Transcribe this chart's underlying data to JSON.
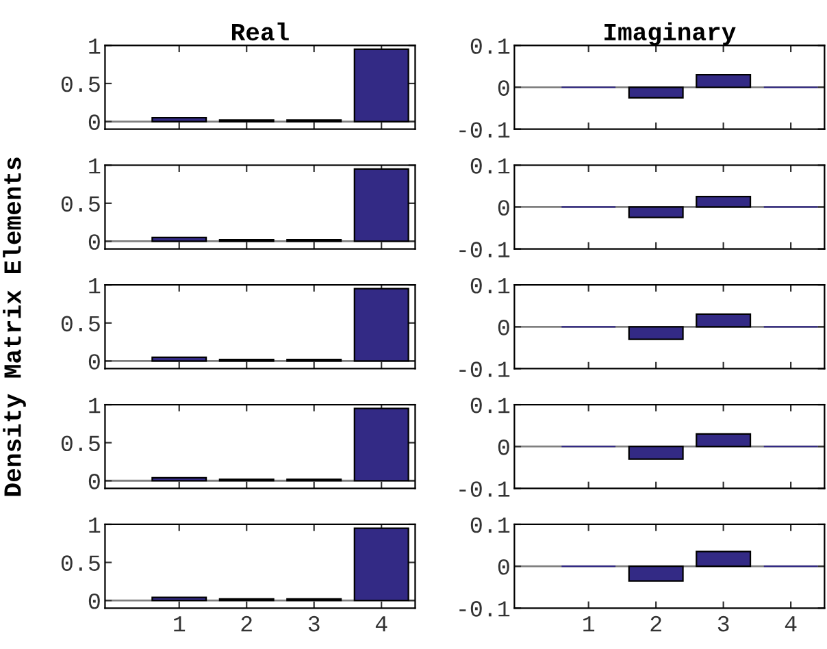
{
  "chart_data": [
    {
      "type": "bar",
      "title": "Real",
      "x": [
        1,
        2,
        3,
        4
      ],
      "values": [
        0.05,
        0.02,
        0.02,
        0.95
      ],
      "color": "#332a85",
      "xlim": [
        -0.1,
        4.5
      ],
      "xticks": [
        1,
        2,
        3,
        4
      ],
      "ylim": [
        -0.1,
        1
      ],
      "yticks": [
        0,
        0.5,
        1
      ],
      "tick_labels": "y",
      "ref_lines": [
        {
          "axis": "y",
          "value": 0,
          "color": "#808080"
        }
      ]
    },
    {
      "type": "bar",
      "title": "Imaginary",
      "x": [
        1,
        2,
        3,
        4
      ],
      "values": [
        0,
        -0.025,
        0.03,
        0
      ],
      "color": "#332a85",
      "xlim": [
        -0.1,
        4.5
      ],
      "xticks": [
        1,
        2,
        3,
        4
      ],
      "ylim": [
        -0.1,
        0.1
      ],
      "yticks": [
        -0.1,
        0,
        0.1
      ],
      "tick_labels": "y",
      "ref_lines": [
        {
          "axis": "y",
          "value": 0,
          "color": "#808080"
        }
      ]
    },
    {
      "type": "bar",
      "x": [
        1,
        2,
        3,
        4
      ],
      "values": [
        0.05,
        0.02,
        0.02,
        0.95
      ],
      "color": "#332a85",
      "xlim": [
        -0.1,
        4.5
      ],
      "xticks": [
        1,
        2,
        3,
        4
      ],
      "ylim": [
        -0.1,
        1
      ],
      "yticks": [
        0,
        0.5,
        1
      ],
      "tick_labels": "y",
      "ref_lines": [
        {
          "axis": "y",
          "value": 0,
          "color": "#808080"
        }
      ]
    },
    {
      "type": "bar",
      "x": [
        1,
        2,
        3,
        4
      ],
      "values": [
        0,
        -0.025,
        0.025,
        0
      ],
      "color": "#332a85",
      "xlim": [
        -0.1,
        4.5
      ],
      "xticks": [
        1,
        2,
        3,
        4
      ],
      "ylim": [
        -0.1,
        0.1
      ],
      "yticks": [
        -0.1,
        0,
        0.1
      ],
      "tick_labels": "y",
      "ref_lines": [
        {
          "axis": "y",
          "value": 0,
          "color": "#808080"
        }
      ]
    },
    {
      "type": "bar",
      "ylabel": "Density Matrix Elements",
      "x": [
        1,
        2,
        3,
        4
      ],
      "values": [
        0.05,
        0.02,
        0.02,
        0.95
      ],
      "color": "#332a85",
      "xlim": [
        -0.1,
        4.5
      ],
      "xticks": [
        1,
        2,
        3,
        4
      ],
      "ylim": [
        -0.1,
        1
      ],
      "yticks": [
        0,
        0.5,
        1
      ],
      "tick_labels": "y",
      "ref_lines": [
        {
          "axis": "y",
          "value": 0,
          "color": "#808080"
        }
      ]
    },
    {
      "type": "bar",
      "x": [
        1,
        2,
        3,
        4
      ],
      "values": [
        0,
        -0.03,
        0.03,
        0
      ],
      "color": "#332a85",
      "xlim": [
        -0.1,
        4.5
      ],
      "xticks": [
        1,
        2,
        3,
        4
      ],
      "ylim": [
        -0.1,
        0.1
      ],
      "yticks": [
        -0.1,
        0,
        0.1
      ],
      "tick_labels": "y",
      "ref_lines": [
        {
          "axis": "y",
          "value": 0,
          "color": "#808080"
        }
      ]
    },
    {
      "type": "bar",
      "x": [
        1,
        2,
        3,
        4
      ],
      "values": [
        0.04,
        0.02,
        0.02,
        0.95
      ],
      "color": "#332a85",
      "xlim": [
        -0.1,
        4.5
      ],
      "xticks": [
        1,
        2,
        3,
        4
      ],
      "ylim": [
        -0.1,
        1
      ],
      "yticks": [
        0,
        0.5,
        1
      ],
      "tick_labels": "y",
      "ref_lines": [
        {
          "axis": "y",
          "value": 0,
          "color": "#808080"
        }
      ]
    },
    {
      "type": "bar",
      "x": [
        1,
        2,
        3,
        4
      ],
      "values": [
        0,
        -0.03,
        0.03,
        0
      ],
      "color": "#332a85",
      "xlim": [
        -0.1,
        4.5
      ],
      "xticks": [
        1,
        2,
        3,
        4
      ],
      "ylim": [
        -0.1,
        0.1
      ],
      "yticks": [
        -0.1,
        0,
        0.1
      ],
      "tick_labels": "y",
      "ref_lines": [
        {
          "axis": "y",
          "value": 0,
          "color": "#808080"
        }
      ]
    },
    {
      "type": "bar",
      "x": [
        1,
        2,
        3,
        4
      ],
      "values": [
        0.04,
        0.02,
        0.02,
        0.95
      ],
      "color": "#332a85",
      "xlim": [
        -0.1,
        4.5
      ],
      "xticks": [
        1,
        2,
        3,
        4
      ],
      "ylim": [
        -0.1,
        1
      ],
      "yticks": [
        0,
        0.5,
        1
      ],
      "ref_lines": [
        {
          "axis": "y",
          "value": 0,
          "color": "#808080"
        }
      ]
    },
    {
      "type": "bar",
      "x": [
        1,
        2,
        3,
        4
      ],
      "values": [
        0,
        -0.035,
        0.035,
        0
      ],
      "color": "#332a85",
      "xlim": [
        -0.1,
        4.5
      ],
      "xticks": [
        1,
        2,
        3,
        4
      ],
      "ylim": [
        -0.1,
        0.1
      ],
      "yticks": [
        -0.1,
        0,
        0.1
      ],
      "ref_lines": [
        {
          "axis": "y",
          "value": 0,
          "color": "#808080"
        }
      ]
    }
  ]
}
